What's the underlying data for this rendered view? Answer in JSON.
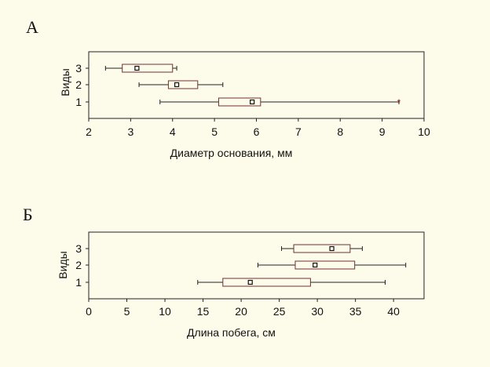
{
  "chart_data": [
    {
      "type": "boxplot",
      "panel_label": "А",
      "xlabel": "Диаметр основания, мм",
      "ylabel": "Виды",
      "xlim": [
        2,
        10
      ],
      "xticks": [
        2,
        3,
        4,
        5,
        6,
        7,
        8,
        9,
        10
      ],
      "categories": [
        "1",
        "2",
        "3"
      ],
      "boxes": [
        {
          "category": "1",
          "whisker_low": 3.7,
          "q1": 5.1,
          "median": 5.9,
          "q3": 6.1,
          "whisker_high": 9.4,
          "outliers": [
            9.4
          ]
        },
        {
          "category": "2",
          "whisker_low": 3.2,
          "q1": 3.9,
          "median": 4.1,
          "q3": 4.6,
          "whisker_high": 5.2,
          "outliers": []
        },
        {
          "category": "3",
          "whisker_low": 2.4,
          "q1": 2.8,
          "median": 3.15,
          "q3": 4.0,
          "whisker_high": 4.1,
          "outliers": []
        }
      ]
    },
    {
      "type": "boxplot",
      "panel_label": "Б",
      "xlabel": "Длина побега, см",
      "ylabel": "Виды",
      "xlim": [
        0,
        44
      ],
      "xticks": [
        0,
        5,
        10,
        15,
        20,
        25,
        30,
        35,
        40
      ],
      "categories": [
        "1",
        "2",
        "3"
      ],
      "boxes": [
        {
          "category": "1",
          "whisker_low": 14.3,
          "q1": 17.6,
          "median": 21.2,
          "q3": 29.1,
          "whisker_high": 38.9,
          "outliers": []
        },
        {
          "category": "2",
          "whisker_low": 22.2,
          "q1": 27.1,
          "median": 29.7,
          "q3": 34.9,
          "whisker_high": 41.6,
          "outliers": []
        },
        {
          "category": "3",
          "whisker_low": 25.3,
          "q1": 26.9,
          "median": 31.9,
          "q3": 34.3,
          "whisker_high": 35.9,
          "outliers": []
        }
      ]
    }
  ]
}
